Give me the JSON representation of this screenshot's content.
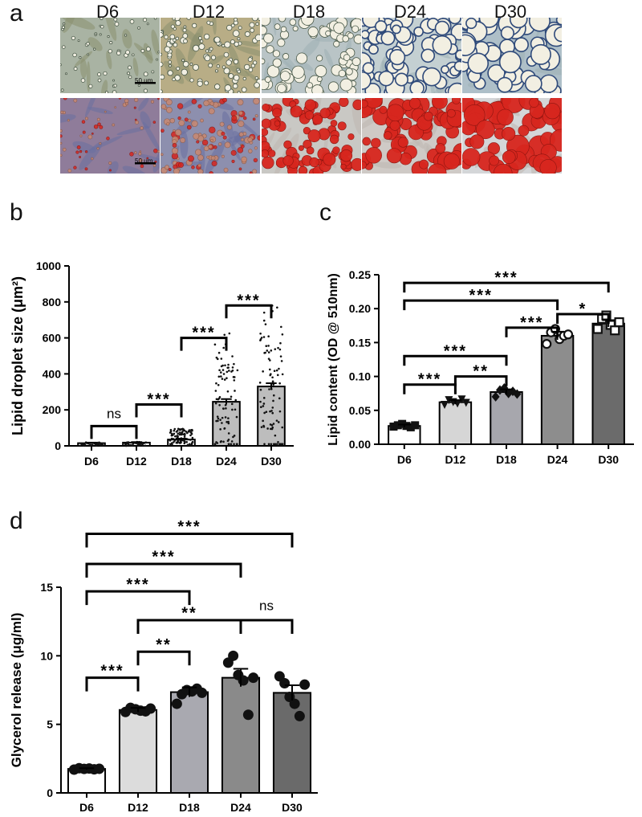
{
  "panel_a": {
    "letter": "a",
    "day_labels": [
      "D6",
      "D12",
      "D18",
      "D24",
      "D30"
    ],
    "scale_label": "50 μm"
  },
  "panel_b": {
    "letter": "b"
  },
  "panel_c": {
    "letter": "c"
  },
  "panel_d": {
    "letter": "d"
  },
  "chart_data": [
    {
      "id": "b",
      "type": "bar",
      "categories": [
        "D6",
        "D12",
        "D18",
        "D24",
        "D30"
      ],
      "values": [
        15,
        18,
        35,
        245,
        330
      ],
      "errors": [
        3,
        3,
        5,
        15,
        18
      ],
      "ylabel": "Lipid droplet size (μm²)",
      "ylim": [
        0,
        1000
      ],
      "yticks": [
        0,
        200,
        400,
        600,
        800,
        1000
      ],
      "colors": [
        "#ffffff",
        "#ffffff",
        "#ffffff",
        "#bdbdbd",
        "#bdbdbd"
      ],
      "points_note": "dense scatter of individual droplet measurements",
      "point_max": [
        20,
        22,
        95,
        630,
        790
      ],
      "point_count": [
        40,
        40,
        90,
        90,
        90
      ],
      "significance": [
        {
          "from": 0,
          "to": 1,
          "label": "ns",
          "y": 110
        },
        {
          "from": 1,
          "to": 2,
          "label": "***",
          "y": 230
        },
        {
          "from": 2,
          "to": 3,
          "label": "***",
          "y": 600
        },
        {
          "from": 3,
          "to": 4,
          "label": "***",
          "y": 780
        }
      ]
    },
    {
      "id": "c",
      "type": "bar",
      "categories": [
        "D6",
        "D12",
        "D18",
        "D24",
        "D30"
      ],
      "values": [
        0.027,
        0.062,
        0.077,
        0.16,
        0.178
      ],
      "errors": [
        0.002,
        0.003,
        0.004,
        0.006,
        0.005
      ],
      "points": [
        [
          0.026,
          0.028,
          0.03,
          0.027,
          0.025,
          0.028
        ],
        [
          0.058,
          0.065,
          0.062,
          0.06,
          0.066,
          0.061
        ],
        [
          0.07,
          0.08,
          0.083,
          0.075,
          0.078,
          0.074
        ],
        [
          0.148,
          0.165,
          0.17,
          0.155,
          0.16,
          0.162
        ],
        [
          0.17,
          0.185,
          0.19,
          0.176,
          0.168,
          0.18
        ]
      ],
      "markers": [
        "square",
        "triangle-down",
        "diamond",
        "circle-open",
        "square-open"
      ],
      "ylabel": "Lipid content (OD @ 510nm)",
      "ylim": [
        0,
        0.25
      ],
      "yticks": [
        "0.00",
        "0.05",
        "0.10",
        "0.15",
        "0.20",
        "0.25"
      ],
      "colors": [
        "#ffffff",
        "#d6d6d6",
        "#a7a7ad",
        "#8d8d8d",
        "#6b6b6b"
      ],
      "significance": [
        {
          "from": 0,
          "to": 1,
          "label": "***",
          "y": 0.088
        },
        {
          "from": 1,
          "to": 2,
          "label": "**",
          "y": 0.1
        },
        {
          "from": 0,
          "to": 2,
          "label": "***",
          "y": 0.13
        },
        {
          "from": 2,
          "to": 3,
          "label": "***",
          "y": 0.172
        },
        {
          "from": 3,
          "to": 4,
          "label": "*",
          "y": 0.192
        },
        {
          "from": 0,
          "to": 3,
          "label": "***",
          "y": 0.212
        },
        {
          "from": 0,
          "to": 4,
          "label": "***",
          "y": 0.238
        }
      ]
    },
    {
      "id": "d",
      "type": "bar",
      "categories": [
        "D6",
        "D12",
        "D18",
        "D24",
        "D30"
      ],
      "values": [
        1.75,
        6.05,
        7.35,
        8.4,
        7.3
      ],
      "errors": [
        0.05,
        0.15,
        0.35,
        0.65,
        0.55
      ],
      "points": [
        [
          1.7,
          1.8,
          1.75,
          1.78,
          1.72,
          1.76
        ],
        [
          5.9,
          6.2,
          6.1,
          6.0,
          5.95,
          6.15
        ],
        [
          6.5,
          7.2,
          7.5,
          7.4,
          7.6,
          7.3
        ],
        [
          9.5,
          10.0,
          8.6,
          8.2,
          5.7,
          8.4
        ],
        [
          8.5,
          8.0,
          7.0,
          6.5,
          5.6,
          7.9
        ]
      ],
      "ylabel": "Glycerol release (μg/ml)",
      "ylim": [
        0,
        15
      ],
      "yticks": [
        0,
        5,
        10,
        15
      ],
      "colors": [
        "#ffffff",
        "#dcdcdc",
        "#a9a9b0",
        "#8a8a8a",
        "#6a6a6a"
      ],
      "significance": [
        {
          "from": 0,
          "to": 1,
          "label": "***",
          "y": 8.4,
          "ylabel": 9.0
        },
        {
          "from": 1,
          "to": 2,
          "label": "**",
          "y": 10.3,
          "ylabel": 10.9
        },
        {
          "from": 1,
          "to": 3,
          "label": "**",
          "y": 12.6,
          "ylabel": 13.2
        },
        {
          "from": 3,
          "to": 4,
          "label": "ns",
          "y": 12.6,
          "ylabel": 13.2
        },
        {
          "from": 0,
          "to": 2,
          "label": "***",
          "y": 14.7,
          "ylabel": 15.3
        },
        {
          "from": 0,
          "to": 3,
          "label": "***",
          "y": 16.7,
          "ylabel": 17.3
        },
        {
          "from": 0,
          "to": 4,
          "label": "***",
          "y": 18.9,
          "ylabel": 19.5
        }
      ]
    }
  ]
}
